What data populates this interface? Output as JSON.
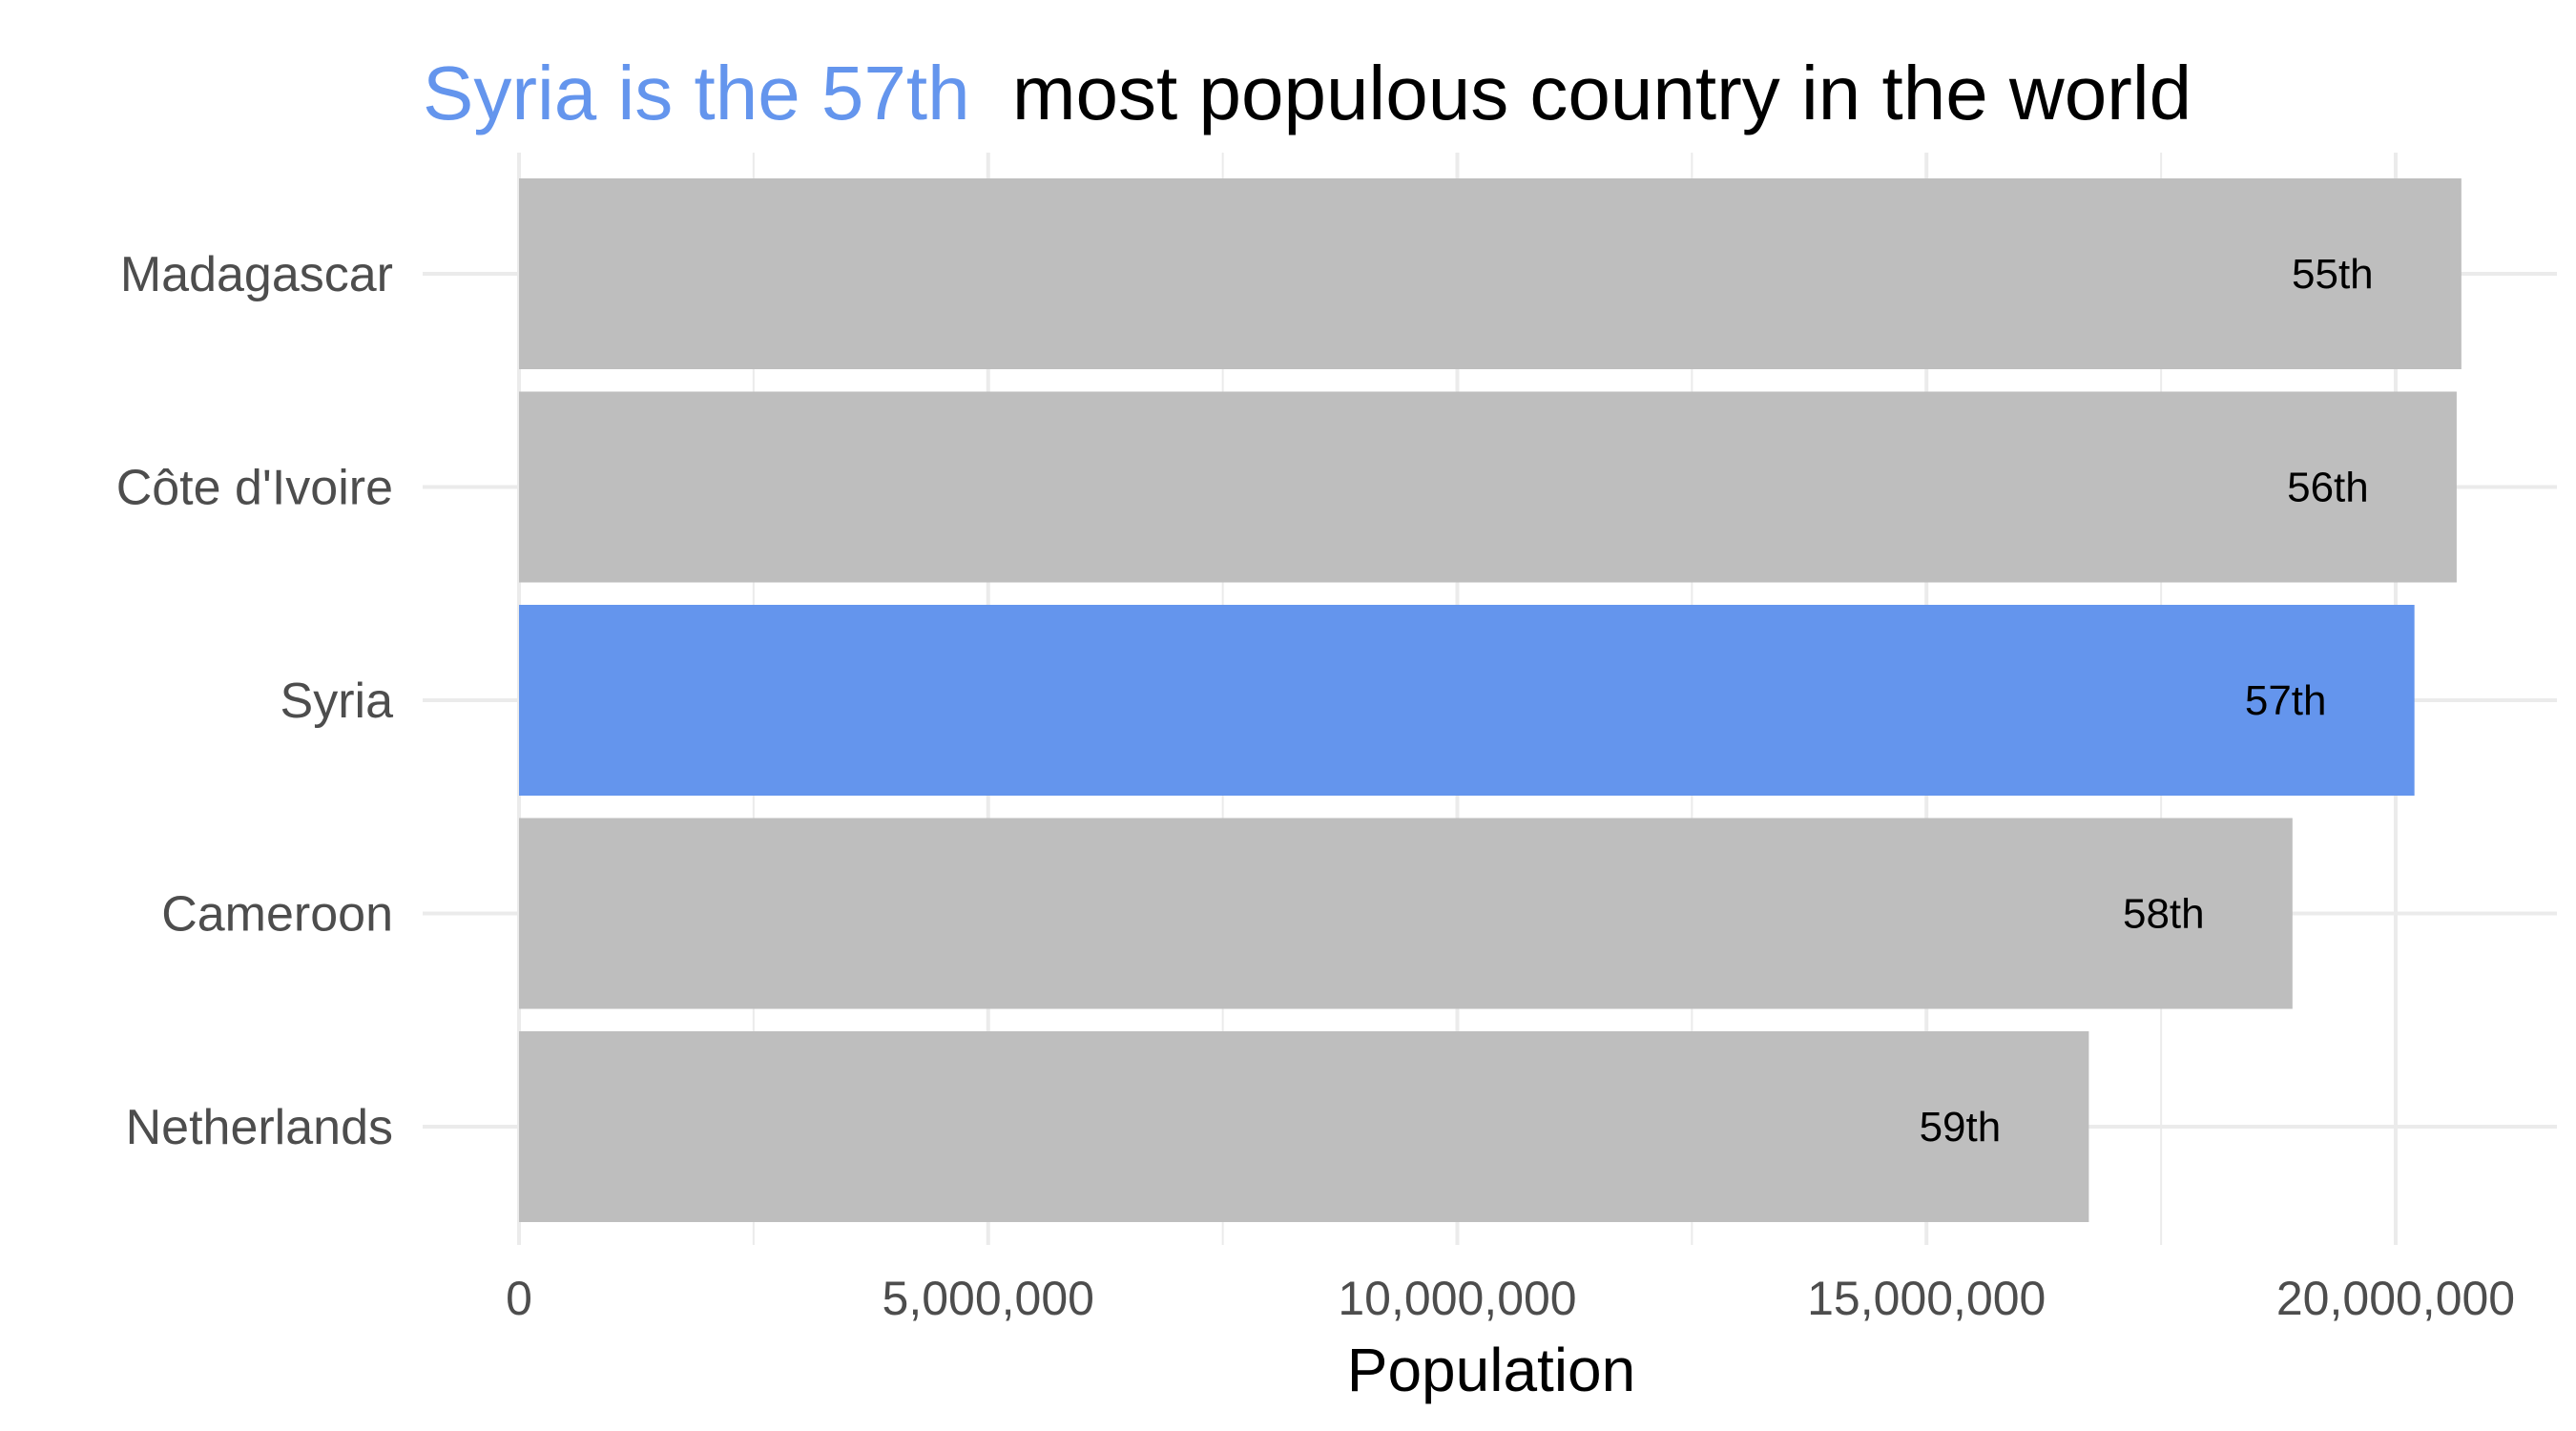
{
  "chart_data": {
    "type": "bar",
    "orientation": "horizontal",
    "title_highlight": "Syria is the 57th",
    "title_rest": "most populous country in the world",
    "xlabel": "Population",
    "ylabel": "",
    "categories": [
      "Madagascar",
      "Côte d'Ivoire",
      "Syria",
      "Cameroon",
      "Netherlands"
    ],
    "values": [
      20700000,
      20650000,
      20200000,
      18900000,
      16730000
    ],
    "labels": [
      "55th",
      "56th",
      "57th",
      "58th",
      "59th"
    ],
    "highlight_index": 2,
    "xlim": [
      0,
      21000000
    ],
    "xticks": [
      0,
      5000000,
      10000000,
      15000000,
      20000000
    ],
    "xtick_labels": [
      "0",
      "5,000,000",
      "10,000,000",
      "15,000,000",
      "20,000,000"
    ],
    "grid": true,
    "legend": "none"
  },
  "colors": {
    "highlight": "#6495ED",
    "bar": "#BEBEBE",
    "grid": "#EBEBEB"
  }
}
